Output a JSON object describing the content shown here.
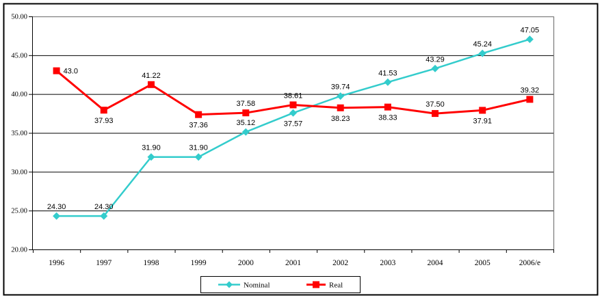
{
  "chart_data": {
    "type": "line",
    "title": "",
    "categories": [
      "1996",
      "1997",
      "1998",
      "1999",
      "2000",
      "2001",
      "2002",
      "2003",
      "2004",
      "2005",
      "2006/e"
    ],
    "series": [
      {
        "name": "Nominal",
        "color": "#33CCCC",
        "marker": "diamond",
        "line_width": 2.5,
        "values": [
          24.3,
          24.3,
          31.9,
          31.9,
          35.12,
          37.57,
          39.74,
          41.53,
          43.29,
          45.24,
          47.05
        ],
        "labels": [
          "24.30",
          "24.30",
          "31.90",
          "31.90",
          "35.12",
          "37.57",
          "39.74",
          "41.53",
          "43.29",
          "45.24",
          "47.05"
        ],
        "label_positions": [
          "above",
          "above",
          "above",
          "above",
          "above",
          "below",
          "above",
          "above",
          "above",
          "above",
          "above"
        ]
      },
      {
        "name": "Real",
        "color": "#FF0000",
        "marker": "square",
        "line_width": 3,
        "values": [
          43.0,
          37.93,
          41.22,
          37.36,
          37.58,
          38.61,
          38.23,
          38.33,
          37.5,
          37.91,
          39.32
        ],
        "labels": [
          "43.0",
          "37.93",
          "41.22",
          "37.36",
          "37.58",
          "38.61",
          "38.23",
          "38.33",
          "37.50",
          "37.91",
          "39.32"
        ],
        "label_positions": [
          "right",
          "below",
          "above",
          "below",
          "above",
          "above",
          "below",
          "below",
          "above",
          "below",
          "above"
        ]
      }
    ],
    "ylim": [
      20,
      50
    ],
    "ytick_step": 5,
    "ytick_labels": [
      "20.00",
      "25.00",
      "30.00",
      "35.00",
      "40.00",
      "45.00",
      "50.00"
    ],
    "grid": true,
    "legend_position": "bottom-center",
    "colors": {
      "nominal_series": "#33CCCC",
      "real_series": "#FF0000",
      "gridline": "#000000",
      "axis": "#000000",
      "plot_border": "#808080",
      "chart_border": "#000000",
      "background": "#FFFFFF",
      "text": "#000000"
    }
  }
}
